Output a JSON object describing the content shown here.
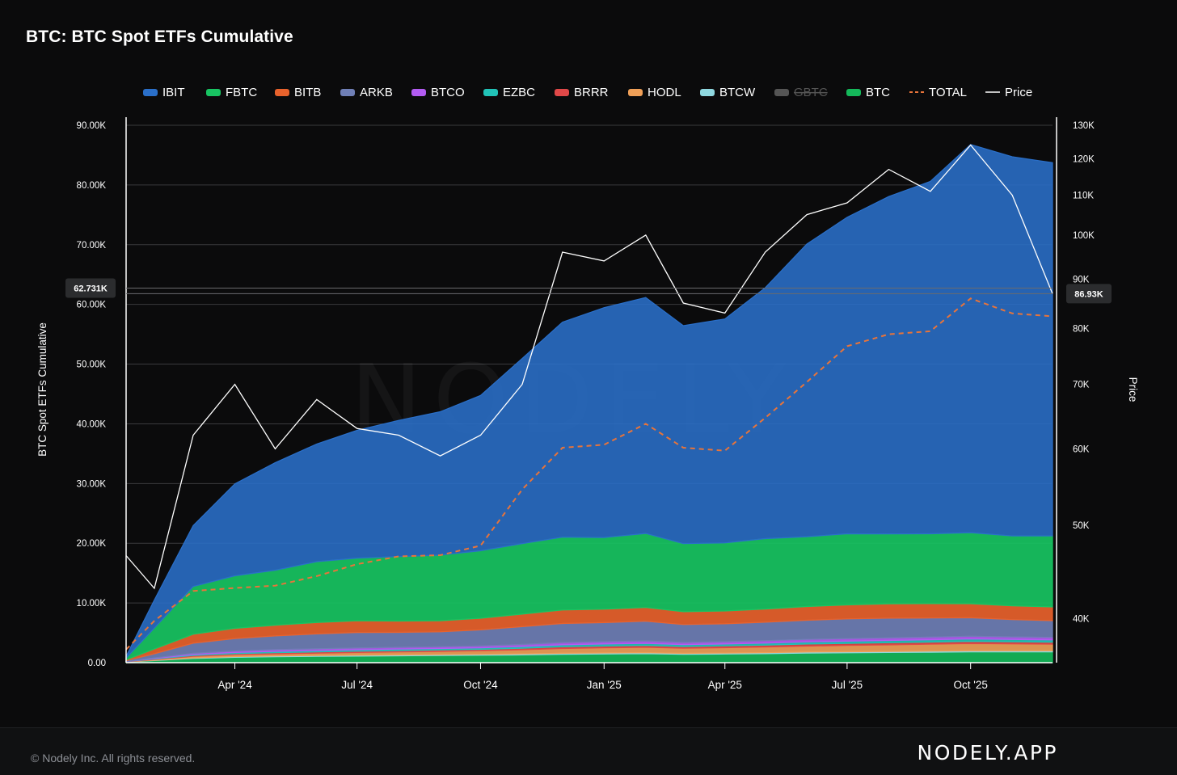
{
  "header": {
    "title": "BTC: BTC Spot ETFs Cumulative"
  },
  "footer": {
    "copyright": "© Nodely Inc. All rights reserved.",
    "brand": "NODELY.APP"
  },
  "watermark": "NODELY",
  "chart_data": {
    "type": "area",
    "title": "BTC: BTC Spot ETFs Cumulative",
    "ylabel": "BTC Spot ETFs Cumulative",
    "y2label": "Price",
    "ylim": [
      0,
      90000
    ],
    "y2lim": [
      36000,
      130000
    ],
    "y2_scale": "log",
    "grid": true,
    "legend_position": "top",
    "yticks": [
      "0.00",
      "10.00K",
      "20.00K",
      "30.00K",
      "40.00K",
      "50.00K",
      "60.00K",
      "70.00K",
      "80.00K",
      "90.00K"
    ],
    "y2ticks": [
      "40K",
      "50K",
      "60K",
      "70K",
      "80K",
      "90K",
      "100K",
      "110K",
      "120K",
      "130K"
    ],
    "xticks": [
      "Apr '24",
      "Jul '24",
      "Oct '24",
      "Jan '25",
      "Apr '25",
      "Jul '25",
      "Oct '25"
    ],
    "legend": [
      {
        "name": "IBIT",
        "color": "#2a6fc9",
        "style": "area"
      },
      {
        "name": "FBTC",
        "color": "#18c462",
        "style": "area"
      },
      {
        "name": "BITB",
        "color": "#e8622c",
        "style": "area"
      },
      {
        "name": "ARKB",
        "color": "#6f7fb6",
        "style": "area"
      },
      {
        "name": "BTCO",
        "color": "#b35cf2",
        "style": "area"
      },
      {
        "name": "EZBC",
        "color": "#21c3b8",
        "style": "area"
      },
      {
        "name": "BRRR",
        "color": "#e04848",
        "style": "area"
      },
      {
        "name": "HODL",
        "color": "#f0a058",
        "style": "area"
      },
      {
        "name": "BTCW",
        "color": "#8fd8e0",
        "style": "area"
      },
      {
        "name": "GBTC",
        "color": "#555555",
        "style": "area",
        "disabled": true
      },
      {
        "name": "BTC",
        "color": "#14b85a",
        "style": "area"
      },
      {
        "name": "TOTAL",
        "color": "#e8743a",
        "style": "dashed"
      },
      {
        "name": "Price",
        "color": "#ffffff",
        "style": "line"
      }
    ],
    "x": [
      "2024-01-11",
      "2024-02-01",
      "2024-03-01",
      "2024-04-01",
      "2024-05-01",
      "2024-06-01",
      "2024-07-01",
      "2024-08-01",
      "2024-09-01",
      "2024-10-01",
      "2024-11-01",
      "2024-12-01",
      "2025-01-01",
      "2025-02-01",
      "2025-03-01",
      "2025-04-01",
      "2025-05-01",
      "2025-06-01",
      "2025-07-01",
      "2025-08-01",
      "2025-09-01",
      "2025-10-01",
      "2025-11-01",
      "2025-12-01"
    ],
    "series": [
      {
        "name": "BTC",
        "values": [
          100,
          350,
          700,
          900,
          1000,
          1050,
          1100,
          1150,
          1200,
          1250,
          1300,
          1400,
          1450,
          1500,
          1400,
          1450,
          1500,
          1600,
          1650,
          1700,
          1750,
          1800,
          1800,
          1800
        ]
      },
      {
        "name": "BTCW",
        "values": [
          20,
          60,
          100,
          120,
          130,
          140,
          150,
          150,
          150,
          150,
          160,
          170,
          170,
          170,
          160,
          160,
          170,
          180,
          180,
          180,
          180,
          190,
          190,
          190
        ]
      },
      {
        "name": "HODL",
        "values": [
          30,
          120,
          250,
          300,
          350,
          400,
          450,
          500,
          550,
          600,
          700,
          800,
          850,
          900,
          850,
          900,
          950,
          1000,
          1050,
          1100,
          1150,
          1200,
          1150,
          1100
        ]
      },
      {
        "name": "BRRR",
        "values": [
          20,
          80,
          150,
          180,
          200,
          210,
          220,
          220,
          220,
          230,
          260,
          300,
          320,
          330,
          300,
          300,
          320,
          340,
          350,
          360,
          370,
          380,
          360,
          350
        ]
      },
      {
        "name": "EZBC",
        "values": [
          20,
          80,
          160,
          200,
          220,
          230,
          240,
          250,
          250,
          260,
          280,
          320,
          330,
          340,
          310,
          320,
          340,
          360,
          370,
          380,
          390,
          400,
          380,
          370
        ]
      },
      {
        "name": "BTCO",
        "values": [
          30,
          100,
          200,
          250,
          280,
          290,
          300,
          300,
          300,
          310,
          340,
          380,
          390,
          400,
          370,
          380,
          400,
          420,
          430,
          440,
          450,
          460,
          440,
          430
        ]
      },
      {
        "name": "ARKB",
        "values": [
          100,
          700,
          1700,
          2100,
          2300,
          2500,
          2600,
          2500,
          2500,
          2700,
          3000,
          3200,
          3200,
          3300,
          3000,
          3000,
          3100,
          3200,
          3300,
          3300,
          3200,
          3100,
          2900,
          2800
        ]
      },
      {
        "name": "BITB",
        "values": [
          150,
          800,
          1500,
          1700,
          1800,
          1900,
          1950,
          1900,
          1850,
          1950,
          2100,
          2250,
          2250,
          2300,
          2150,
          2150,
          2200,
          2300,
          2350,
          2400,
          2400,
          2350,
          2300,
          2300
        ]
      },
      {
        "name": "FBTC",
        "values": [
          300,
          3500,
          8000,
          8800,
          9200,
          10200,
          10500,
          10800,
          11000,
          11300,
          11800,
          12200,
          12000,
          12400,
          11400,
          11400,
          11800,
          11700,
          11900,
          11700,
          11700,
          11900,
          11700,
          11900
        ]
      },
      {
        "name": "IBIT",
        "values": [
          300,
          4700,
          10200,
          15400,
          18000,
          19700,
          21400,
          22800,
          24000,
          26000,
          31000,
          36000,
          38500,
          39500,
          36500,
          37500,
          42000,
          49000,
          53000,
          56500,
          59000,
          65000,
          63500,
          62500
        ]
      }
    ],
    "total": [
      2200,
      7000,
      12000,
      12500,
      12900,
      14500,
      16500,
      17800,
      18000,
      19600,
      29000,
      36000,
      36500,
      40000,
      36000,
      35500,
      41000,
      47000,
      53000,
      55000,
      55500,
      61000,
      58500,
      58000
    ],
    "price": [
      46500,
      43000,
      62000,
      70000,
      60000,
      67500,
      63000,
      62000,
      59000,
      62000,
      70000,
      96000,
      94000,
      100000,
      85000,
      83000,
      96000,
      105000,
      108000,
      117000,
      111000,
      124000,
      110000,
      86930
    ],
    "current_labels": {
      "left": "62.731K",
      "right": "86.93K"
    }
  }
}
